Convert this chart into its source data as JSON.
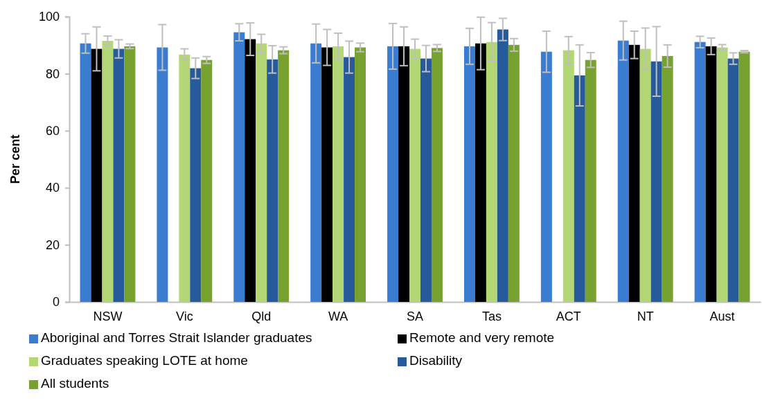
{
  "chart_data": {
    "type": "bar",
    "ylabel": "Per cent",
    "categories": [
      "NSW",
      "Vic",
      "Qld",
      "WA",
      "SA",
      "Tas",
      "ACT",
      "NT",
      "Aust"
    ],
    "ylim": [
      0,
      100
    ],
    "yticks": [
      0,
      20,
      40,
      60,
      80,
      100
    ],
    "legend": "bottom",
    "grid": false,
    "series": [
      {
        "name": "Aboriginal and Torres Strait Islander graduates",
        "color": "#3a7dd0",
        "values": [
          90.6,
          89.2,
          94.5,
          90.6,
          89.6,
          89.6,
          87.7,
          91.6,
          91.1
        ],
        "errors": [
          3.4,
          8,
          3,
          6.8,
          8,
          6.3,
          7.2,
          6.8,
          2
        ]
      },
      {
        "name": "Remote and very remote",
        "color": "#000000",
        "values": [
          88.7,
          null,
          92.1,
          89.2,
          89.6,
          90.6,
          null,
          90.1,
          89.6
        ],
        "errors": [
          7.7,
          null,
          5.7,
          6.3,
          6.8,
          9.2,
          null,
          4.8,
          2.9
        ]
      },
      {
        "name": "Graduates speaking LOTE at home",
        "color": "#b3d774",
        "values": [
          91.5,
          86.7,
          90.6,
          89.6,
          88.7,
          91.1,
          88.2,
          88.7,
          89.2
        ],
        "errors": [
          1.7,
          2,
          3.2,
          4.6,
          3.4,
          6.8,
          4.8,
          7.3,
          1
        ]
      },
      {
        "name": "Disability",
        "color": "#265a9a",
        "values": [
          88.7,
          81.9,
          85,
          85.8,
          85.3,
          95.5,
          79.4,
          84.3,
          85.3
        ],
        "errors": [
          3.2,
          3.6,
          4.8,
          5.6,
          4.6,
          3.9,
          10.7,
          12.2,
          2
        ]
      },
      {
        "name": "All students",
        "color": "#77a22f",
        "values": [
          89.6,
          84.8,
          88.2,
          89.2,
          89,
          90.1,
          84.8,
          86.2,
          87.7
        ],
        "errors": [
          0.8,
          1.2,
          1.2,
          1.5,
          1.2,
          2.2,
          2.6,
          3.9,
          0.4
        ]
      }
    ]
  }
}
